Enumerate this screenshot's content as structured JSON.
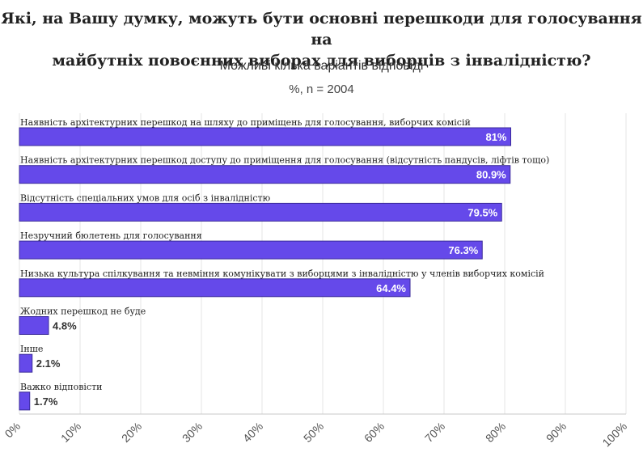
{
  "title_line1": "Які, на Вашу думку, можуть бути основні перешкоди для голосування на",
  "title_line2": "майбутніх повоєнних виборах для виборців з інвалідністю?",
  "subtitle": "Можливі кілька варіантів відповіді",
  "note": "%, n = 2004",
  "colors": {
    "bar": "#6549ea",
    "bar_border": "#3a2a9a",
    "grid": "#e6e6e6",
    "axis": "#c8c8c8"
  },
  "chart_data": {
    "type": "bar",
    "orientation": "horizontal",
    "categories": [
      "Наявність архітектурних перешкод на шляху до приміщень для голосування, виборчих комісій",
      "Наявність архітектурних перешкод доступу до приміщення для голосування (відсутність пандусів, ліфтів тощо)",
      "Відсутність спеціальних умов для осіб з інвалідністю",
      "Незручний бюлетень для голосування",
      "Низька культура спілкування та невміння комунікувати з виборцями з інвалідністю у членів виборчих комісій",
      "Жодних перешкод не буде",
      "Інше",
      "Важко відповісти"
    ],
    "values": [
      81,
      80.9,
      79.5,
      76.3,
      64.4,
      4.8,
      2.1,
      1.7
    ],
    "value_labels": [
      "81%",
      "80.9%",
      "79.5%",
      "76.3%",
      "64.4%",
      "4.8%",
      "2.1%",
      "1.7%"
    ],
    "xlim": [
      0,
      100
    ],
    "x_ticks": [
      0,
      10,
      20,
      30,
      40,
      50,
      60,
      70,
      80,
      90,
      100
    ],
    "x_tick_labels": [
      "0%",
      "10%",
      "20%",
      "30%",
      "40%",
      "50%",
      "60%",
      "70%",
      "80%",
      "90%",
      "100%"
    ],
    "grid": true
  }
}
